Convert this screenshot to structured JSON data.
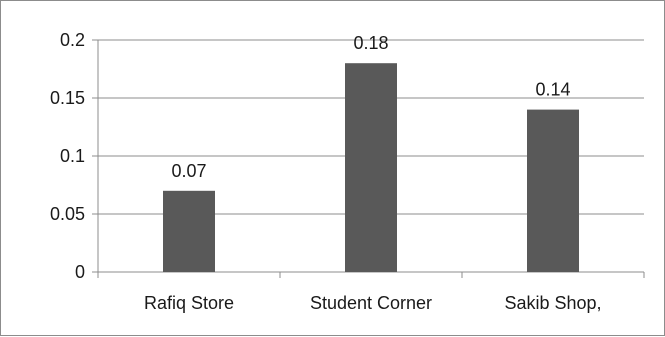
{
  "chart_data": {
    "type": "bar",
    "categories": [
      "Rafiq Store",
      "Student Corner",
      "Sakib Shop,"
    ],
    "values": [
      0.07,
      0.18,
      0.14
    ],
    "data_labels": [
      "0.07",
      "0.18",
      "0.14"
    ],
    "title": "",
    "xlabel": "",
    "ylabel": "",
    "ylim": [
      0,
      0.2
    ],
    "yticks": [
      0,
      0.05,
      0.1,
      0.15,
      0.2
    ],
    "ytick_labels": [
      "0",
      "0.05",
      "0.1",
      "0.15",
      "0.2"
    ],
    "grid": true,
    "legend": false,
    "bar_color": "#595959",
    "grid_color": "#8c8c8c"
  }
}
